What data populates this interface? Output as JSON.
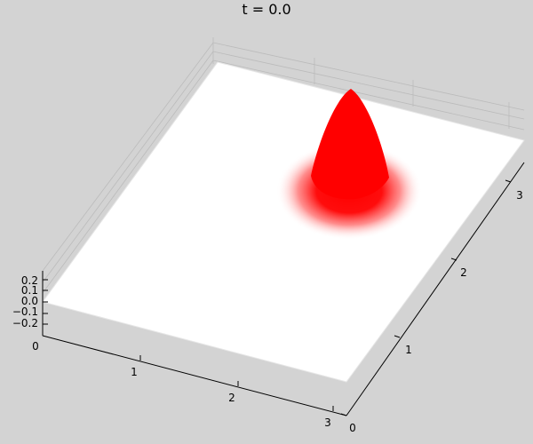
{
  "title": "t = 0.0",
  "chart_data": {
    "type": "surface",
    "title": "t = 0.0",
    "xlabel": "",
    "ylabel": "",
    "zlabel": "",
    "x_ticks": [
      "0",
      "1",
      "2",
      "3"
    ],
    "y_ticks": [
      "0",
      "1",
      "2",
      "3"
    ],
    "z_ticks": [
      "0.2",
      "0.1",
      "0.0",
      "−0.1",
      "−0.2"
    ],
    "xlim": [
      0,
      3.14
    ],
    "ylim": [
      0,
      3.14
    ],
    "zlim": [
      -0.25,
      0.25
    ],
    "grid": true,
    "legend": "none",
    "surface": {
      "baseline_z": 0.0,
      "peak": {
        "x": 2.4,
        "y": 1.9,
        "z": 0.25
      },
      "description_of_shape": "single Gaussian bump on a flat sheet"
    },
    "colors": {
      "surface": "#ffffff",
      "peak": "#ff0000",
      "background": "#d3d3d3"
    }
  }
}
